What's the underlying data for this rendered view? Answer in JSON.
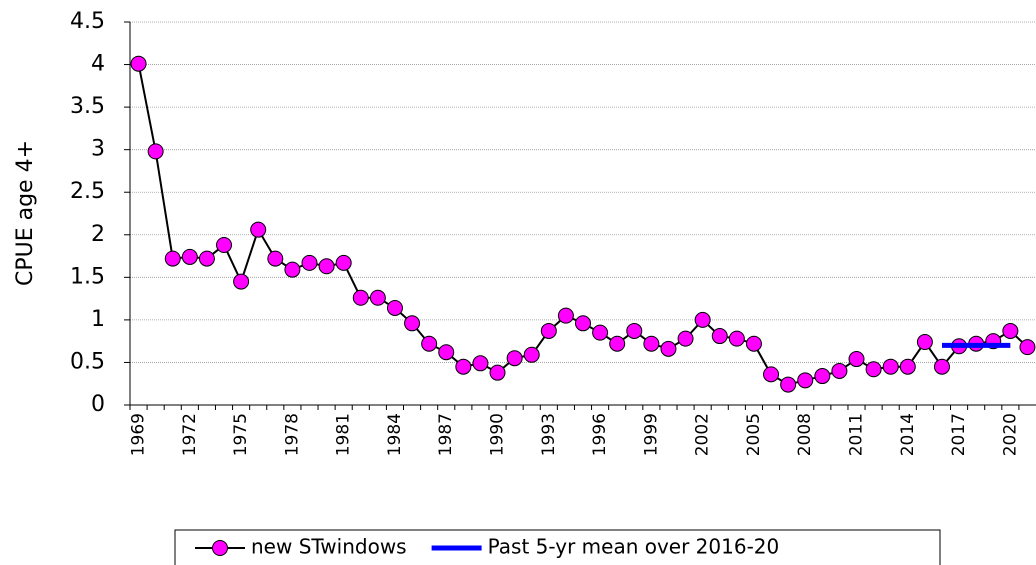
{
  "chart_data": {
    "type": "line",
    "y_label": "CPUE age 4+",
    "categories": [
      "1969",
      null,
      null,
      "1972",
      null,
      null,
      "1975",
      null,
      null,
      "1978",
      null,
      null,
      "1981",
      null,
      null,
      "1984",
      null,
      null,
      "1987",
      null,
      null,
      "1990",
      null,
      null,
      "1993",
      null,
      null,
      "1996",
      null,
      null,
      "1999",
      null,
      null,
      "2002",
      null,
      null,
      "2005",
      null,
      null,
      "2008",
      null,
      null,
      "2011",
      null,
      null,
      "2014",
      null,
      null,
      "2017",
      null,
      null,
      "2020",
      null
    ],
    "series": [
      {
        "name": "new STwindows",
        "color": "#ff00ff",
        "line_color": "#000000",
        "marker": "circle",
        "values": [
          4.01,
          2.98,
          1.72,
          1.74,
          1.72,
          1.88,
          1.45,
          2.06,
          1.72,
          1.59,
          1.67,
          1.63,
          1.67,
          1.26,
          1.26,
          1.14,
          0.96,
          0.72,
          0.62,
          0.45,
          0.49,
          0.38,
          0.55,
          0.59,
          0.87,
          1.05,
          0.96,
          0.85,
          0.72,
          0.87,
          0.72,
          0.66,
          0.78,
          1.0,
          0.81,
          0.78,
          0.72,
          0.36,
          0.24,
          0.29,
          0.34,
          0.4,
          0.54,
          0.42,
          0.45,
          0.45,
          0.74,
          0.45,
          0.69,
          0.72,
          0.75,
          0.87,
          0.68
        ]
      },
      {
        "name": "Past 5-yr mean over 2016-20",
        "color": "#0000ff",
        "marker": "none",
        "values": [
          null,
          null,
          null,
          null,
          null,
          null,
          null,
          null,
          null,
          null,
          null,
          null,
          null,
          null,
          null,
          null,
          null,
          null,
          null,
          null,
          null,
          null,
          null,
          null,
          null,
          null,
          null,
          null,
          null,
          null,
          null,
          null,
          null,
          null,
          null,
          null,
          null,
          null,
          null,
          null,
          null,
          null,
          null,
          null,
          null,
          null,
          null,
          0.7,
          0.7,
          0.7,
          0.7,
          0.7,
          null
        ]
      }
    ],
    "ylim": [
      0,
      4.5
    ],
    "yticks": [
      0,
      0.5,
      1,
      1.5,
      2,
      2.5,
      3,
      3.5,
      4,
      4.5
    ],
    "grid": true,
    "legend": "bottom"
  }
}
